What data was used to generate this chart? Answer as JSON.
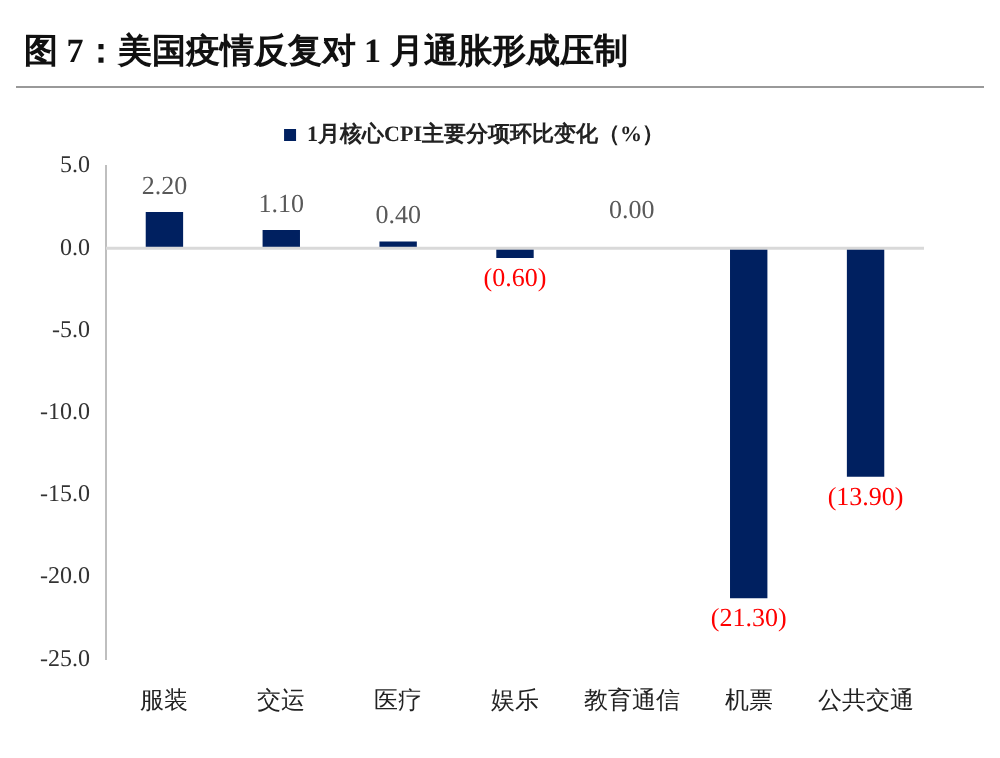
{
  "chart_data": {
    "type": "bar",
    "title": "图 7：美国疫情反复对 1 月通胀形成压制",
    "categories": [
      "服装",
      "交运",
      "医疗",
      "娱乐",
      "教育通信",
      "机票",
      "公共交通"
    ],
    "series": [
      {
        "name": "1月核心CPI主要分项环比变化（%）",
        "color": "#002060",
        "values": [
          2.2,
          1.1,
          0.4,
          -0.6,
          0.0,
          -21.3,
          -13.9
        ],
        "value_labels": [
          "2.20",
          "1.10",
          "0.40",
          "(0.60)",
          "0.00",
          "(21.30)",
          "(13.90)"
        ]
      }
    ],
    "ylim": [
      -25,
      5
    ],
    "yticks": [
      {
        "value": 5,
        "label": "5.0"
      },
      {
        "value": 0,
        "label": "0.0"
      },
      {
        "value": -5,
        "label": "-5.0"
      },
      {
        "value": -10,
        "label": "-10.0"
      },
      {
        "value": -15,
        "label": "-15.0"
      },
      {
        "value": -20,
        "label": "-20.0"
      },
      {
        "value": -25,
        "label": "-25.0"
      }
    ],
    "ref_lines": [
      {
        "axis": "y",
        "value": 0,
        "color": "#d9d9d9"
      }
    ],
    "grid": false,
    "legend": "top"
  }
}
